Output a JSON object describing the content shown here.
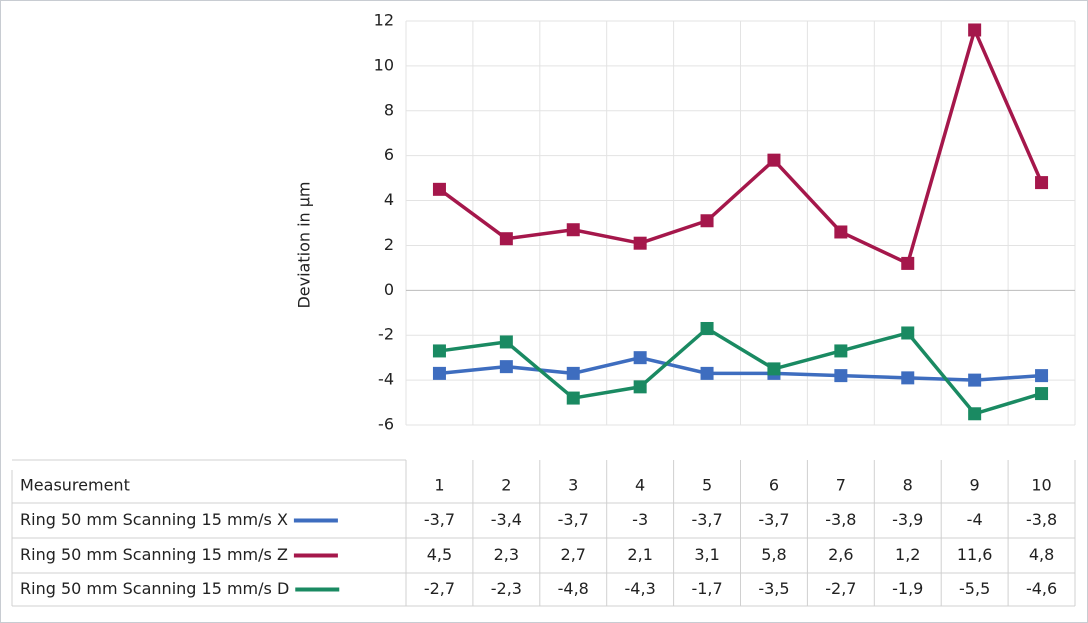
{
  "chart_data": {
    "type": "line",
    "y_label": "Deviation in µm",
    "table_header": "Measurement",
    "categories": [
      "1",
      "2",
      "3",
      "4",
      "5",
      "6",
      "7",
      "8",
      "9",
      "10"
    ],
    "ylim": [
      -6,
      12
    ],
    "yticks": [
      12,
      10,
      8,
      6,
      4,
      2,
      0,
      -2,
      -4,
      -6
    ],
    "grid": true,
    "series": [
      {
        "name": "Ring 50 mm Scanning 15 mm/s X",
        "color": "#3e6dbf",
        "values": [
          -3.7,
          -3.4,
          -3.7,
          -3,
          -3.7,
          -3.7,
          -3.8,
          -3.9,
          -4,
          -3.8
        ],
        "value_labels": [
          "-3,7",
          "-3,4",
          "-3,7",
          "-3",
          "-3,7",
          "-3,7",
          "-3,8",
          "-3,9",
          "-4",
          "-3,8"
        ]
      },
      {
        "name": "Ring 50 mm Scanning 15 mm/s Z",
        "color": "#a5174b",
        "values": [
          4.5,
          2.3,
          2.7,
          2.1,
          3.1,
          5.8,
          2.6,
          1.2,
          11.6,
          4.8
        ],
        "value_labels": [
          "4,5",
          "2,3",
          "2,7",
          "2,1",
          "3,1",
          "5,8",
          "2,6",
          "1,2",
          "11,6",
          "4,8"
        ]
      },
      {
        "name": "Ring 50 mm Scanning 15 mm/s D",
        "color": "#1a8a62",
        "values": [
          -2.7,
          -2.3,
          -4.8,
          -4.3,
          -1.7,
          -3.5,
          -2.7,
          -1.9,
          -5.5,
          -4.6
        ],
        "value_labels": [
          "-2,7",
          "-2,3",
          "-4,8",
          "-4,3",
          "-1,7",
          "-3,5",
          "-2,7",
          "-1,9",
          "-5,5",
          "-4,6"
        ]
      }
    ]
  }
}
